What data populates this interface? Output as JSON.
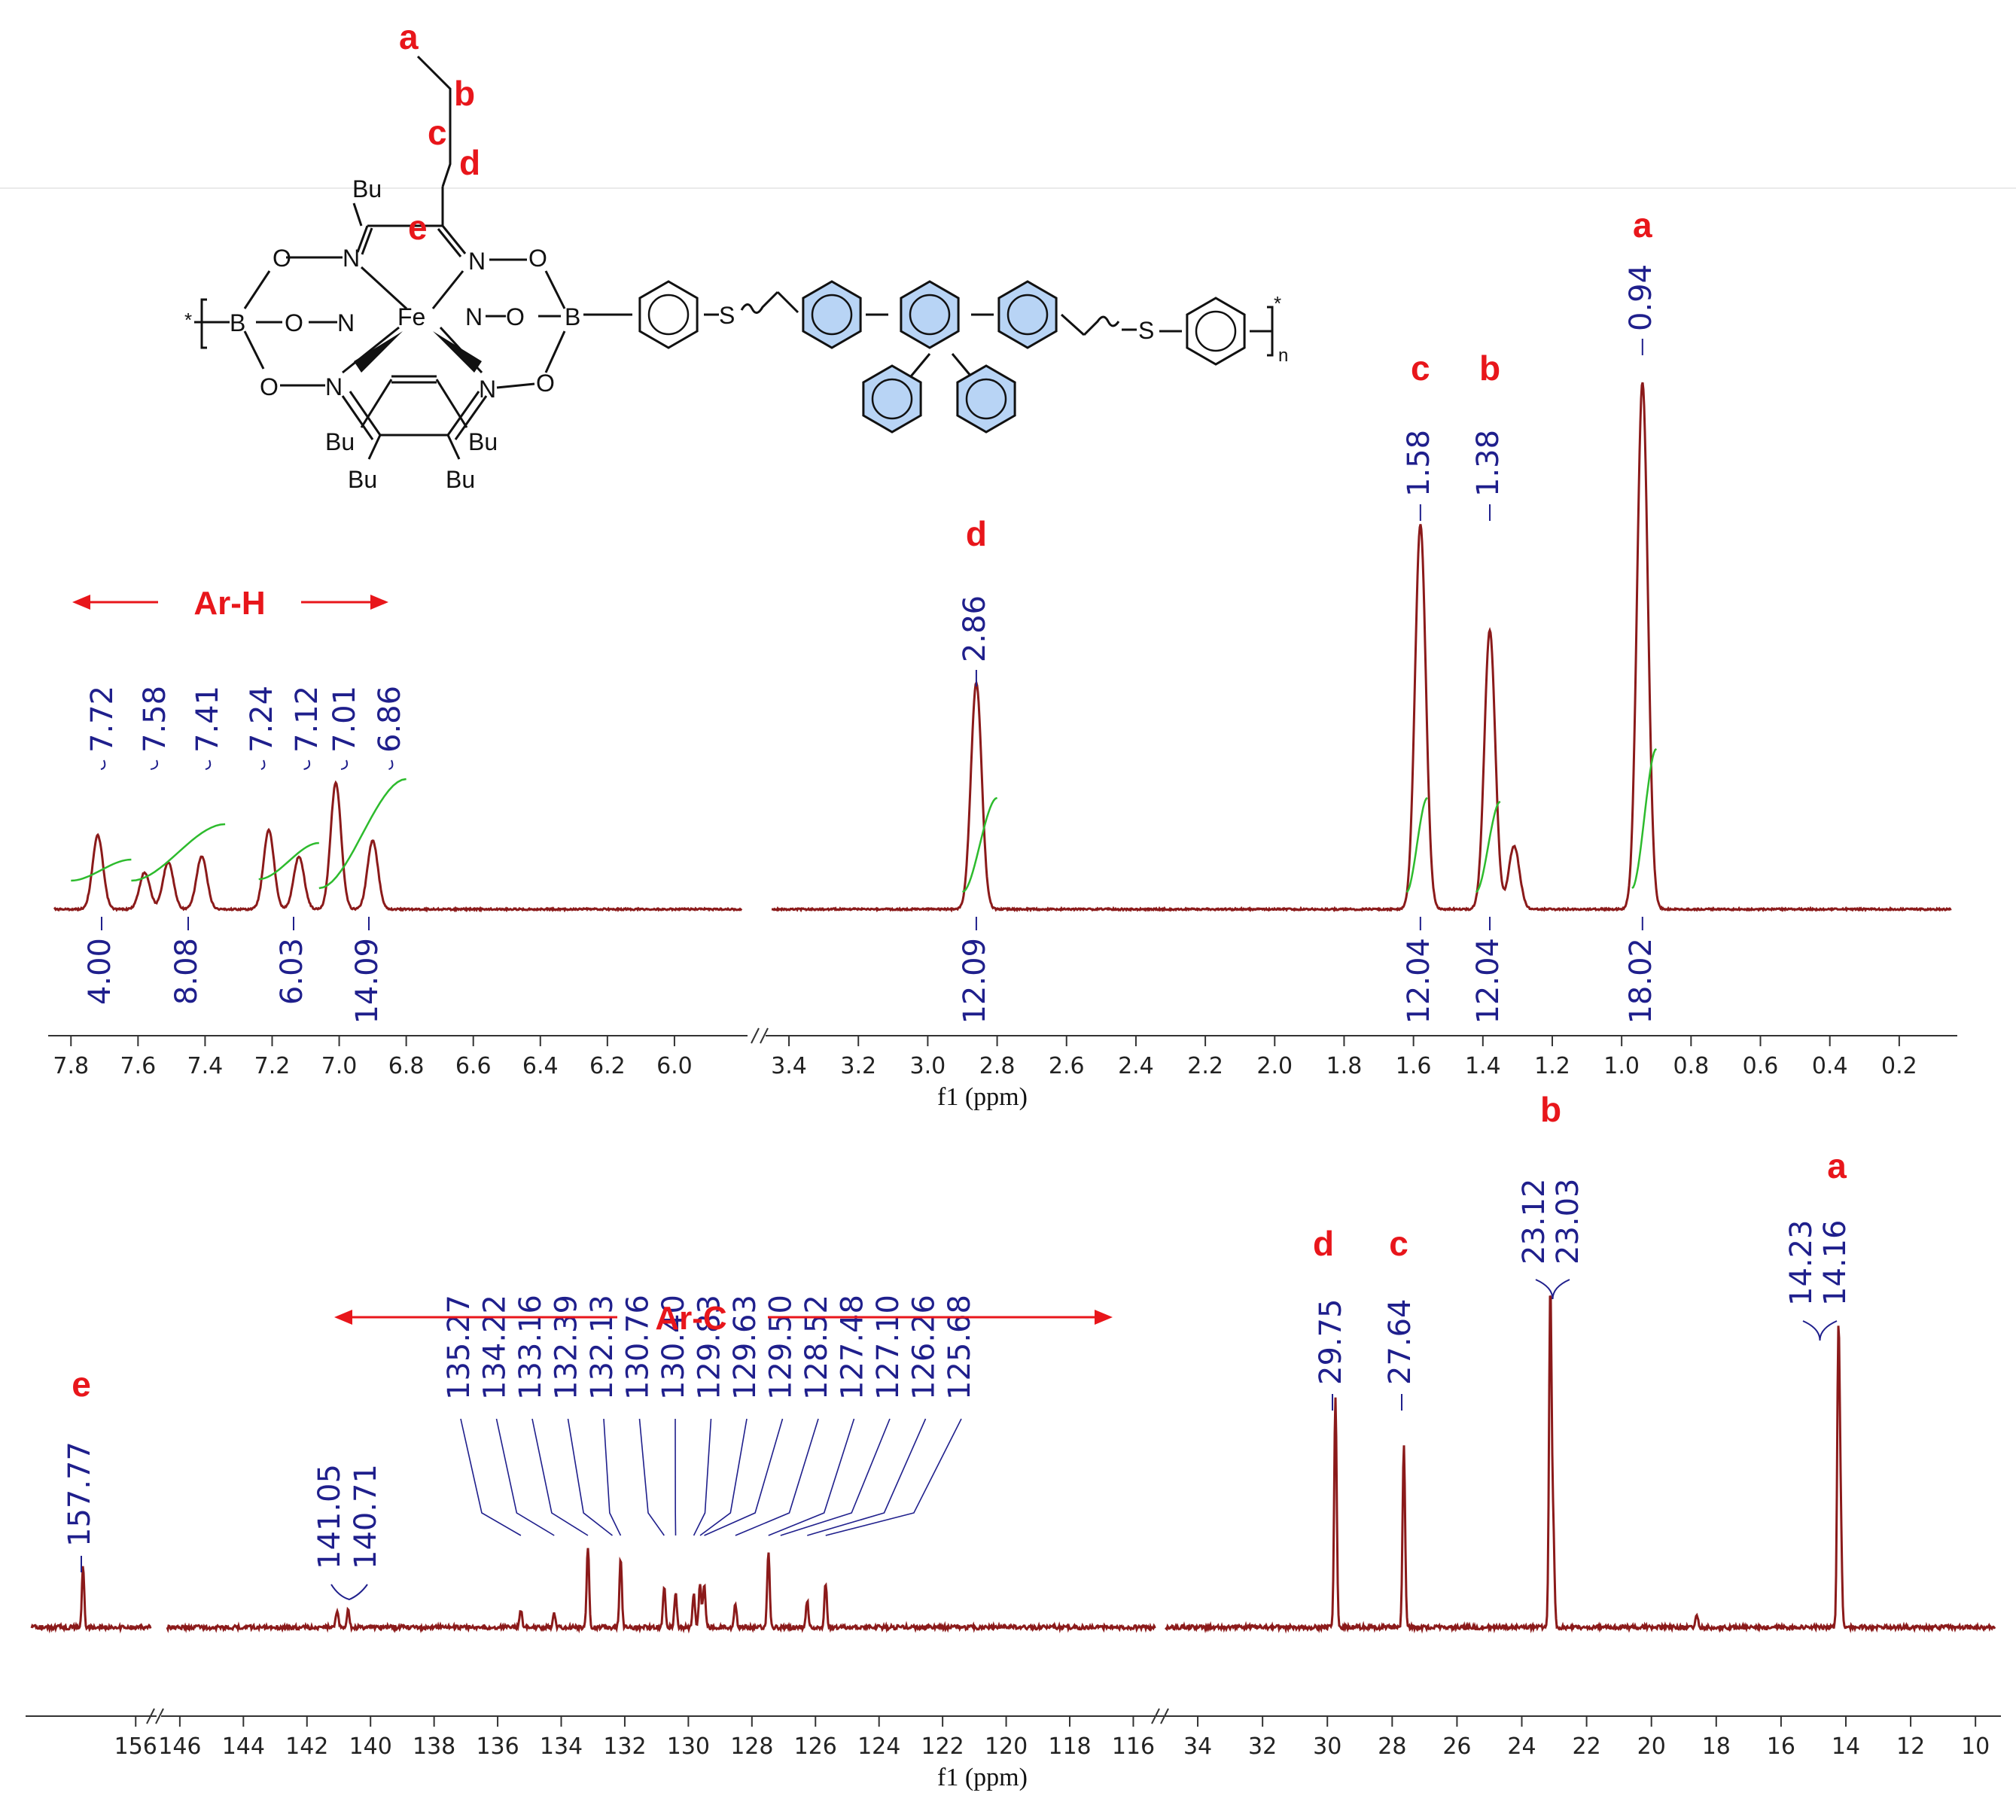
{
  "colors": {
    "spectrum": "#8B1A1A",
    "peak_label": "#1F1F8C",
    "assign": "#E8161B",
    "integral": "#2DBB2D",
    "axis": "#333333",
    "ring_fill": "#B8D4F5"
  },
  "structure": {
    "chain_labels": [
      "a",
      "b",
      "c",
      "d",
      "e"
    ],
    "bu_labels": [
      "Bu",
      "Bu",
      "Bu",
      "Bu",
      "Bu"
    ],
    "atom_labels": [
      "O",
      "N",
      "N",
      "O",
      "B",
      "O",
      "N",
      "Fe",
      "N",
      "O",
      "B",
      "O",
      "N",
      "N",
      "O",
      "S",
      "S"
    ],
    "star": "*",
    "n": "n"
  },
  "chart_data": [
    {
      "type": "line",
      "nucleus": "1H",
      "xlabel": "f1 (ppm)",
      "x_axis": "reversed",
      "segments": [
        {
          "xlim": [
            7.85,
            5.8
          ]
        },
        {
          "xlim": [
            3.45,
            0.05
          ]
        }
      ],
      "ticks": [
        7.8,
        7.6,
        7.4,
        7.2,
        7.0,
        6.8,
        6.6,
        6.4,
        6.2,
        6.0,
        3.4,
        3.2,
        3.0,
        2.8,
        2.6,
        2.4,
        2.2,
        2.0,
        1.8,
        1.6,
        1.4,
        1.2,
        1.0,
        0.8,
        0.6,
        0.4,
        0.2
      ],
      "tick_labels": [
        "7.8",
        "7.6",
        "7.4",
        "7.2",
        "7.0",
        "6.8",
        "6.6",
        "6.4",
        "6.2",
        "6.0",
        "3.4",
        "3.2",
        "3.0",
        "2.8",
        "2.6",
        "2.4",
        "2.2",
        "2.0",
        "1.8",
        "1.6",
        "1.4",
        "1.2",
        "1.0",
        "0.8",
        "0.6",
        "0.4",
        "0.2"
      ],
      "peaks": [
        {
          "ppm": 7.72,
          "height": 0.14
        },
        {
          "ppm": 7.58,
          "height": 0.07
        },
        {
          "ppm": 7.51,
          "height": 0.09
        },
        {
          "ppm": 7.41,
          "height": 0.1
        },
        {
          "ppm": 7.21,
          "height": 0.15
        },
        {
          "ppm": 7.12,
          "height": 0.1
        },
        {
          "ppm": 7.01,
          "height": 0.24
        },
        {
          "ppm": 6.9,
          "height": 0.13
        },
        {
          "ppm": 2.86,
          "height": 0.43
        },
        {
          "ppm": 1.58,
          "height": 0.73
        },
        {
          "ppm": 1.38,
          "height": 0.53
        },
        {
          "ppm": 1.31,
          "height": 0.12
        },
        {
          "ppm": 0.94,
          "height": 1.0
        }
      ],
      "peak_labels": [
        {
          "text": "7.72",
          "ppm": 7.72
        },
        {
          "text": "7.58",
          "ppm": 7.58
        },
        {
          "text": "7.41",
          "ppm": 7.41
        },
        {
          "text": "7.24",
          "ppm": 7.24
        },
        {
          "text": "7.12",
          "ppm": 7.12
        },
        {
          "text": "7.01",
          "ppm": 7.01
        },
        {
          "text": "6.86",
          "ppm": 6.86
        },
        {
          "text": "2.86",
          "ppm": 2.86
        },
        {
          "text": "1.58",
          "ppm": 1.58
        },
        {
          "text": "1.38",
          "ppm": 1.38
        },
        {
          "text": "0.94",
          "ppm": 0.94
        }
      ],
      "integrals": [
        {
          "text": "4.00",
          "ppm": 7.73
        },
        {
          "text": "8.08",
          "ppm": 7.5
        },
        {
          "text": "6.03",
          "ppm": 7.16
        },
        {
          "text": "14.09",
          "ppm": 6.96
        },
        {
          "text": "12.09",
          "ppm": 2.86
        },
        {
          "text": "12.04",
          "ppm": 1.58
        },
        {
          "text": "12.04",
          "ppm": 1.38
        },
        {
          "text": "18.02",
          "ppm": 0.94
        }
      ],
      "assignments": [
        {
          "text": "d",
          "ppm": 2.86
        },
        {
          "text": "c",
          "ppm": 1.58
        },
        {
          "text": "b",
          "ppm": 1.38
        },
        {
          "text": "a",
          "ppm": 0.94
        }
      ],
      "region_label": "Ar-H"
    },
    {
      "type": "line",
      "nucleus": "13C",
      "xlabel": "f1 (ppm)",
      "x_axis": "reversed",
      "segments": [
        {
          "xlim": [
            159.5,
            155.5
          ]
        },
        {
          "xlim": [
            146.4,
            115.3
          ]
        },
        {
          "xlim": [
            35.0,
            9.4
          ]
        }
      ],
      "ticks": [
        156,
        146,
        144,
        142,
        140,
        138,
        136,
        134,
        132,
        130,
        128,
        126,
        124,
        122,
        120,
        118,
        116,
        34,
        32,
        30,
        28,
        26,
        24,
        22,
        20,
        18,
        16,
        14,
        12,
        10
      ],
      "tick_labels": [
        "156",
        "146",
        "144",
        "142",
        "140",
        "138",
        "136",
        "134",
        "132",
        "130",
        "128",
        "126",
        "124",
        "122",
        "120",
        "118",
        "116",
        "34",
        "32",
        "30",
        "28",
        "26",
        "24",
        "22",
        "20",
        "18",
        "16",
        "14",
        "12",
        "10"
      ],
      "peaks": [
        {
          "ppm": 157.77,
          "height": 0.18
        },
        {
          "ppm": 141.05,
          "height": 0.05
        },
        {
          "ppm": 140.71,
          "height": 0.05
        },
        {
          "ppm": 135.27,
          "height": 0.05
        },
        {
          "ppm": 134.22,
          "height": 0.04
        },
        {
          "ppm": 133.16,
          "height": 0.24
        },
        {
          "ppm": 132.13,
          "height": 0.2
        },
        {
          "ppm": 130.76,
          "height": 0.12
        },
        {
          "ppm": 130.4,
          "height": 0.1
        },
        {
          "ppm": 129.83,
          "height": 0.1
        },
        {
          "ppm": 129.63,
          "height": 0.13
        },
        {
          "ppm": 129.5,
          "height": 0.13
        },
        {
          "ppm": 128.52,
          "height": 0.07
        },
        {
          "ppm": 127.48,
          "height": 0.22
        },
        {
          "ppm": 126.26,
          "height": 0.08
        },
        {
          "ppm": 125.68,
          "height": 0.13
        },
        {
          "ppm": 29.75,
          "height": 0.68
        },
        {
          "ppm": 27.64,
          "height": 0.54
        },
        {
          "ppm": 23.12,
          "height": 1.0
        },
        {
          "ppm": 23.03,
          "height": 0.28
        },
        {
          "ppm": 18.6,
          "height": 0.04
        },
        {
          "ppm": 14.23,
          "height": 0.84
        },
        {
          "ppm": 14.16,
          "height": 0.28
        }
      ],
      "peak_labels": [
        {
          "text": "157.77",
          "ppm": 157.77
        },
        {
          "text": "141.05",
          "ppm": 141.05
        },
        {
          "text": "140.71",
          "ppm": 140.71
        },
        {
          "text": "135.27",
          "ppm": 135.27
        },
        {
          "text": "134.22",
          "ppm": 134.22
        },
        {
          "text": "133.16",
          "ppm": 133.16
        },
        {
          "text": "132.39",
          "ppm": 132.39
        },
        {
          "text": "132.13",
          "ppm": 132.13
        },
        {
          "text": "130.76",
          "ppm": 130.76
        },
        {
          "text": "130.40",
          "ppm": 130.4
        },
        {
          "text": "129.83",
          "ppm": 129.83
        },
        {
          "text": "129.63",
          "ppm": 129.63
        },
        {
          "text": "129.50",
          "ppm": 129.5
        },
        {
          "text": "128.52",
          "ppm": 128.52
        },
        {
          "text": "127.48",
          "ppm": 127.48
        },
        {
          "text": "127.10",
          "ppm": 127.1
        },
        {
          "text": "126.26",
          "ppm": 126.26
        },
        {
          "text": "125.68",
          "ppm": 125.68
        },
        {
          "text": "29.75",
          "ppm": 29.75
        },
        {
          "text": "27.64",
          "ppm": 27.64
        },
        {
          "text": "23.12",
          "ppm": 23.12
        },
        {
          "text": "23.03",
          "ppm": 23.03
        },
        {
          "text": "14.23",
          "ppm": 14.23
        },
        {
          "text": "14.16",
          "ppm": 14.16
        }
      ],
      "assignments": [
        {
          "text": "e",
          "ppm": 157.77
        },
        {
          "text": "d",
          "ppm": 29.75
        },
        {
          "text": "c",
          "ppm": 27.64
        },
        {
          "text": "b",
          "ppm": 23.07
        },
        {
          "text": "a",
          "ppm": 14.2
        }
      ],
      "region_label": "Ar-C"
    }
  ]
}
